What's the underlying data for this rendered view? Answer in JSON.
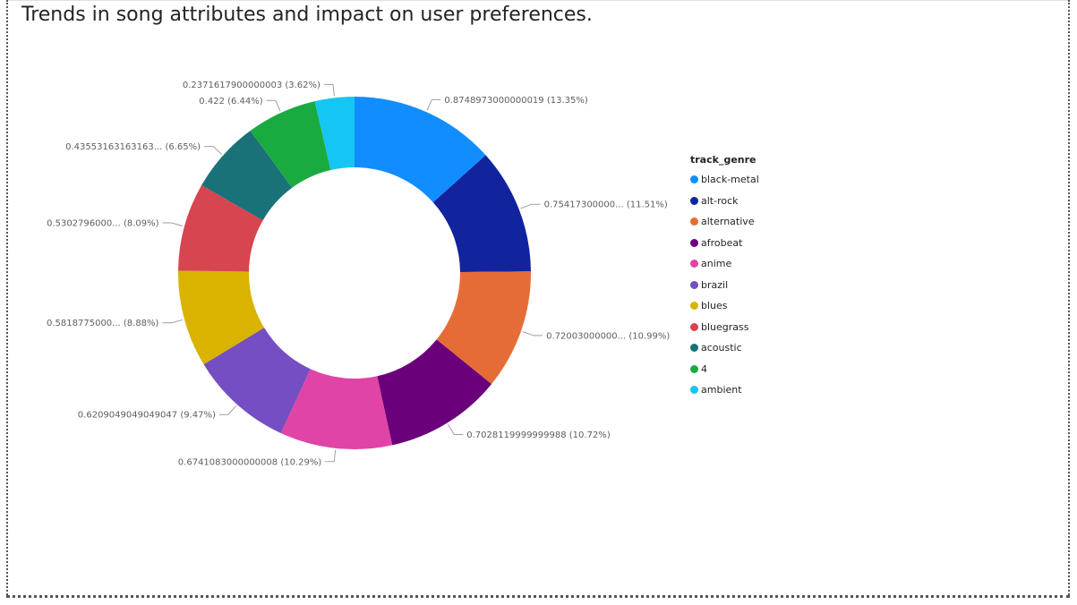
{
  "title": "Trends in song attributes and impact on user preferences.",
  "chart_data": {
    "type": "pie",
    "donut": true,
    "legend_title": "track_genre",
    "legend_position": "right",
    "slices": [
      {
        "name": "black-metal",
        "value": 0.8748973000000019,
        "percent": 13.35,
        "label": "0.8748973000000019 (13.35%)",
        "color": "#118DFF"
      },
      {
        "name": "alt-rock",
        "value": 0.754173,
        "percent": 11.51,
        "label": "0.75417300000... (11.51%)",
        "color": "#12239E"
      },
      {
        "name": "alternative",
        "value": 0.72003,
        "percent": 10.99,
        "label": "0.72003000000... (10.99%)",
        "color": "#E66C37"
      },
      {
        "name": "afrobeat",
        "value": 0.7028119999999988,
        "percent": 10.72,
        "label": "0.7028119999999988 (10.72%)",
        "color": "#6B007B"
      },
      {
        "name": "anime",
        "value": 0.6741083000000008,
        "percent": 10.29,
        "label": "0.6741083000000008 (10.29%)",
        "color": "#E044A7"
      },
      {
        "name": "brazil",
        "value": 0.6209049049049047,
        "percent": 9.47,
        "label": "0.6209049049049047 (9.47%)",
        "color": "#744EC2"
      },
      {
        "name": "blues",
        "value": 0.5818775,
        "percent": 8.88,
        "label": "0.5818775000... (8.88%)",
        "color": "#D9B300"
      },
      {
        "name": "bluegrass",
        "value": 0.5302796,
        "percent": 8.09,
        "label": "0.5302796000... (8.09%)",
        "color": "#D64550"
      },
      {
        "name": "acoustic",
        "value": 0.43553163163163,
        "percent": 6.65,
        "label": "0.43553163163163... (6.65%)",
        "color": "#197278"
      },
      {
        "name": "4",
        "value": 0.422,
        "percent": 6.44,
        "label": "0.422 (6.44%)",
        "color": "#1AAB40"
      },
      {
        "name": "ambient",
        "value": 0.2371617900000003,
        "percent": 3.62,
        "label": "0.2371617900000003 (3.62%)",
        "color": "#15C6F4"
      }
    ]
  }
}
